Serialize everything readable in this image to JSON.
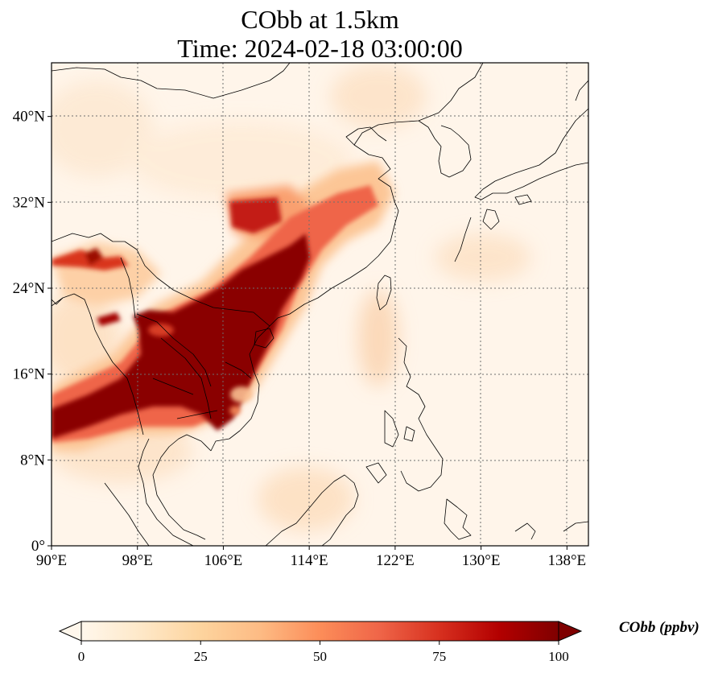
{
  "title": {
    "line1": "CObb at 1.5km",
    "line2": "Time: 2024-02-18 03:00:00"
  },
  "map": {
    "lon_range": [
      90,
      140
    ],
    "lat_range": [
      0,
      45
    ],
    "lon_ticks": [
      90,
      98,
      106,
      114,
      122,
      130,
      138
    ],
    "lon_tick_labels": [
      "90°E",
      "98°E",
      "106°E",
      "114°E",
      "122°E",
      "130°E",
      "138°E"
    ],
    "lat_ticks": [
      0,
      8,
      16,
      24,
      32,
      40
    ],
    "lat_tick_labels": [
      "0°",
      "8°N",
      "16°N",
      "24°N",
      "32°N",
      "40°N"
    ],
    "gridlines": true,
    "colormap": "OrRd"
  },
  "colorbar": {
    "label": "CObb (ppbv)",
    "min": 0,
    "max": 100,
    "ticks": [
      0,
      25,
      50,
      75,
      100
    ],
    "tick_labels": [
      "0",
      "25",
      "50",
      "75",
      "100"
    ],
    "extend": "both",
    "colors": [
      "#fff7ec",
      "#fee8c8",
      "#fdd49e",
      "#fdbb84",
      "#fc8d59",
      "#ef6548",
      "#d7301f",
      "#b30000",
      "#7f0000"
    ]
  }
}
